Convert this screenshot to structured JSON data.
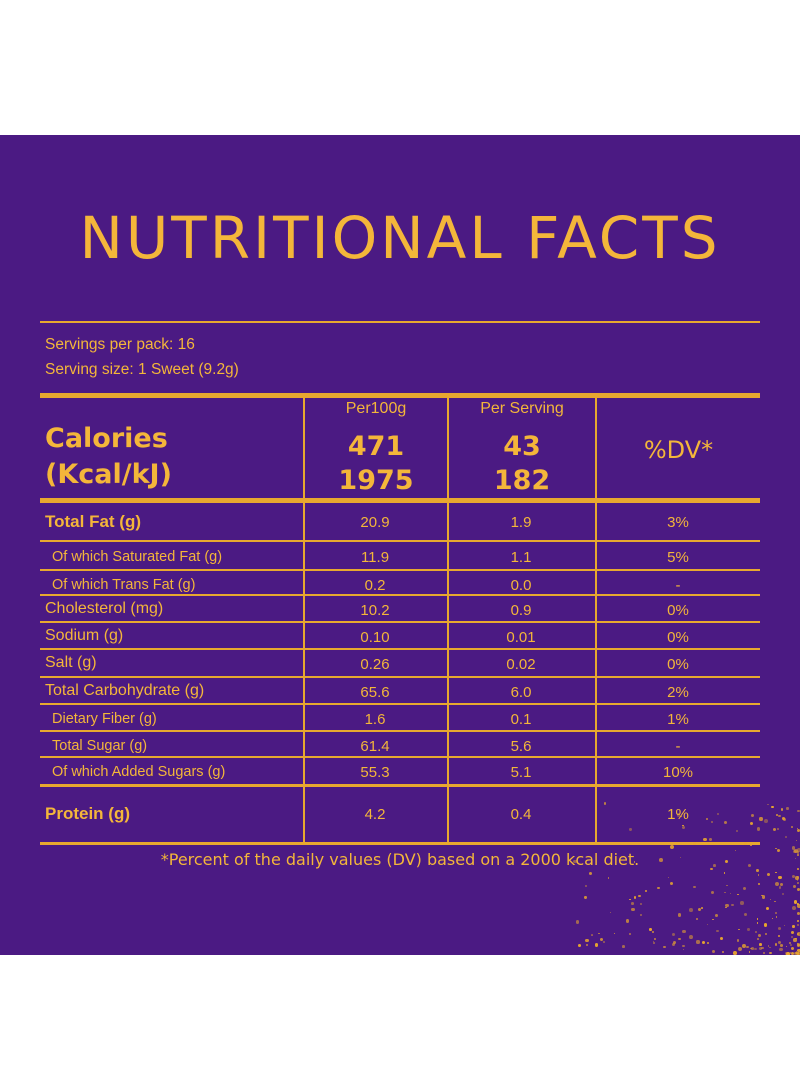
{
  "title": "NUTRITIONAL FACTS",
  "servings": {
    "per_pack": "Servings per pack: 16",
    "size": "Serving size: 1 Sweet (9.2g)"
  },
  "columns": {
    "per100g": "Per100g",
    "per_serving": "Per Serving",
    "dv": "%DV*"
  },
  "calories": {
    "label_line1": "Calories",
    "label_line2": "(Kcal/kJ)",
    "per100g_kcal": "471",
    "per100g_kj": "1975",
    "serving_kcal": "43",
    "serving_kj": "182"
  },
  "rows": [
    {
      "label": "Total Fat (g)",
      "per100g": "20.9",
      "serving": "1.9",
      "dv": "3%"
    },
    {
      "label": "Of which Saturated Fat (g)",
      "per100g": "11.9",
      "serving": "1.1",
      "dv": "5%"
    },
    {
      "label": "Of which Trans Fat (g)",
      "per100g": "0.2",
      "serving": "0.0",
      "dv": "-"
    },
    {
      "label": "Cholesterol (mg)",
      "per100g": "10.2",
      "serving": "0.9",
      "dv": "0%"
    },
    {
      "label": "Sodium (g)",
      "per100g": "0.10",
      "serving": "0.01",
      "dv": "0%"
    },
    {
      "label": "Salt (g)",
      "per100g": "0.26",
      "serving": "0.02",
      "dv": "0%"
    },
    {
      "label": "Total Carbohydrate (g)",
      "per100g": "65.6",
      "serving": "6.0",
      "dv": "2%"
    },
    {
      "label": "Dietary Fiber (g)",
      "per100g": "1.6",
      "serving": "0.1",
      "dv": "1%"
    },
    {
      "label": "Total Sugar (g)",
      "per100g": "61.4",
      "serving": "5.6",
      "dv": "-"
    },
    {
      "label": "Of which Added Sugars (g)",
      "per100g": "55.3",
      "serving": "5.1",
      "dv": "10%"
    },
    {
      "label": "Protein (g)",
      "per100g": "4.2",
      "serving": "0.4",
      "dv": "1%"
    }
  ],
  "footnote": "*Percent of the daily values (DV) based on a 2000 kcal diet.",
  "colors": {
    "background": "#4b1a83",
    "text": "#f4b63a",
    "rule": "#e8a82f"
  }
}
